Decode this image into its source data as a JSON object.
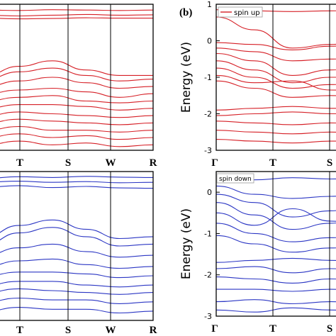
{
  "panel_label_b": "(b)",
  "colors": {
    "spin_up": "#d61f26",
    "spin_down": "#2b36c4",
    "frame": "#000000"
  },
  "chart_data": [
    {
      "id": "left-top",
      "type": "line",
      "description_hint": "band structure, spin up (cropped)",
      "title": "",
      "xlabel": "",
      "ylabel": "",
      "k_labels": [
        "T",
        "S",
        "W",
        "R"
      ],
      "ylim": [
        -3,
        1
      ],
      "spin": "up",
      "series": [
        {
          "x": [
            0,
            1,
            2,
            3,
            4,
            5,
            6
          ],
          "values": [
            0.85,
            0.84,
            0.83,
            0.85,
            0.84,
            0.83,
            0.84
          ]
        },
        {
          "x": [
            0,
            1,
            2,
            3,
            4,
            5,
            6
          ],
          "values": [
            0.72,
            0.7,
            0.68,
            0.7,
            0.72,
            0.7,
            0.71
          ]
        },
        {
          "x": [
            0,
            1,
            2,
            3,
            4,
            5,
            6
          ],
          "values": [
            0.62,
            0.62,
            0.6,
            0.61,
            0.63,
            0.62,
            0.62
          ]
        },
        {
          "x": [
            0,
            1,
            2,
            3,
            4,
            5,
            6
          ],
          "values": [
            -0.9,
            -0.95,
            -0.7,
            -0.55,
            -0.8,
            -0.95,
            -0.95
          ]
        },
        {
          "x": [
            0,
            1,
            2,
            3,
            4,
            5,
            6
          ],
          "values": [
            -1.0,
            -1.05,
            -0.85,
            -0.75,
            -0.95,
            -1.1,
            -1.05
          ]
        },
        {
          "x": [
            0,
            1,
            2,
            3,
            4,
            5,
            6
          ],
          "values": [
            -1.2,
            -1.25,
            -1.1,
            -1.0,
            -1.15,
            -1.3,
            -1.25
          ]
        },
        {
          "x": [
            0,
            1,
            2,
            3,
            4,
            5,
            6
          ],
          "values": [
            -1.4,
            -1.45,
            -1.35,
            -1.3,
            -1.4,
            -1.55,
            -1.45
          ]
        },
        {
          "x": [
            0,
            1,
            2,
            3,
            4,
            5,
            6
          ],
          "values": [
            -1.6,
            -1.65,
            -1.55,
            -1.5,
            -1.65,
            -1.7,
            -1.65
          ]
        },
        {
          "x": [
            0,
            1,
            2,
            3,
            4,
            5,
            6
          ],
          "values": [
            -1.8,
            -1.85,
            -1.75,
            -1.75,
            -1.8,
            -1.9,
            -1.85
          ]
        },
        {
          "x": [
            0,
            1,
            2,
            3,
            4,
            5,
            6
          ],
          "values": [
            -2.0,
            -2.05,
            -1.95,
            -2.0,
            -2.05,
            -2.1,
            -2.05
          ]
        },
        {
          "x": [
            0,
            1,
            2,
            3,
            4,
            5,
            6
          ],
          "values": [
            -2.2,
            -2.25,
            -2.15,
            -2.2,
            -2.25,
            -2.3,
            -2.25
          ]
        },
        {
          "x": [
            0,
            1,
            2,
            3,
            4,
            5,
            6
          ],
          "values": [
            -2.4,
            -2.45,
            -2.35,
            -2.45,
            -2.45,
            -2.5,
            -2.45
          ]
        },
        {
          "x": [
            0,
            1,
            2,
            3,
            4,
            5,
            6
          ],
          "values": [
            -2.6,
            -2.65,
            -2.55,
            -2.65,
            -2.6,
            -2.7,
            -2.65
          ]
        },
        {
          "x": [
            0,
            1,
            2,
            3,
            4,
            5,
            6
          ],
          "values": [
            -2.8,
            -2.85,
            -2.75,
            -2.85,
            -2.8,
            -2.9,
            -2.85
          ]
        }
      ]
    },
    {
      "id": "left-bottom",
      "type": "line",
      "description_hint": "band structure, spin down (cropped)",
      "title": "",
      "xlabel": "",
      "ylabel": "",
      "k_labels": [
        "T",
        "S",
        "W",
        "R"
      ],
      "ylim": [
        -3,
        1
      ],
      "spin": "down",
      "series": [
        {
          "x": [
            0,
            1,
            2,
            3,
            4,
            5,
            6
          ],
          "values": [
            0.85,
            0.82,
            0.86,
            0.84,
            0.87,
            0.85,
            0.84
          ]
        },
        {
          "x": [
            0,
            1,
            2,
            3,
            4,
            5,
            6
          ],
          "values": [
            0.7,
            0.72,
            0.74,
            0.71,
            0.73,
            0.7,
            0.71
          ]
        },
        {
          "x": [
            0,
            1,
            2,
            3,
            4,
            5,
            6
          ],
          "values": [
            0.55,
            0.58,
            0.62,
            0.57,
            0.6,
            0.56,
            0.55
          ]
        },
        {
          "x": [
            0,
            1,
            2,
            3,
            4,
            5,
            6
          ],
          "values": [
            -0.7,
            -0.75,
            -0.45,
            -0.3,
            -0.55,
            -0.8,
            -0.75
          ]
        },
        {
          "x": [
            0,
            1,
            2,
            3,
            4,
            5,
            6
          ],
          "values": [
            -0.9,
            -0.95,
            -0.65,
            -0.5,
            -0.75,
            -1.0,
            -0.95
          ]
        },
        {
          "x": [
            0,
            1,
            2,
            3,
            4,
            5,
            6
          ],
          "values": [
            -1.2,
            -1.25,
            -1.05,
            -0.95,
            -1.15,
            -1.3,
            -1.25
          ]
        },
        {
          "x": [
            0,
            1,
            2,
            3,
            4,
            5,
            6
          ],
          "values": [
            -1.5,
            -1.55,
            -1.4,
            -1.35,
            -1.5,
            -1.6,
            -1.55
          ]
        },
        {
          "x": [
            0,
            1,
            2,
            3,
            4,
            5,
            6
          ],
          "values": [
            -1.75,
            -1.8,
            -1.7,
            -1.7,
            -1.75,
            -1.85,
            -1.8
          ]
        },
        {
          "x": [
            0,
            1,
            2,
            3,
            4,
            5,
            6
          ],
          "values": [
            -2.0,
            -2.05,
            -1.95,
            -1.95,
            -2.05,
            -2.1,
            -2.05
          ]
        },
        {
          "x": [
            0,
            1,
            2,
            3,
            4,
            5,
            6
          ],
          "values": [
            -2.2,
            -2.25,
            -2.15,
            -2.2,
            -2.25,
            -2.3,
            -2.25
          ]
        },
        {
          "x": [
            0,
            1,
            2,
            3,
            4,
            5,
            6
          ],
          "values": [
            -2.45,
            -2.5,
            -2.4,
            -2.45,
            -2.45,
            -2.55,
            -2.5
          ]
        },
        {
          "x": [
            0,
            1,
            2,
            3,
            4,
            5,
            6
          ],
          "values": [
            -2.7,
            -2.75,
            -2.65,
            -2.7,
            -2.7,
            -2.8,
            -2.75
          ]
        }
      ]
    },
    {
      "id": "right-top",
      "type": "line",
      "title": "",
      "xlabel": "",
      "ylabel": "Energy (eV)",
      "k_labels": [
        "Γ",
        "T",
        "S"
      ],
      "yticks": [
        1,
        0,
        -1,
        -2,
        -3
      ],
      "ylim": [
        -3,
        1
      ],
      "legend": {
        "label": "spin up",
        "placement": "top-left"
      },
      "spin": "up",
      "series": [
        {
          "x": [
            0,
            1,
            2,
            3,
            4
          ],
          "values": [
            0.85,
            0.82,
            0.8,
            0.82,
            0.84
          ]
        },
        {
          "x": [
            0,
            1,
            2,
            3,
            4
          ],
          "values": [
            0.65,
            0.3,
            -0.2,
            -0.1,
            0.05
          ]
        },
        {
          "x": [
            0,
            1,
            2,
            3,
            4
          ],
          "values": [
            -0.05,
            -0.1,
            -0.25,
            -0.15,
            -0.1
          ]
        },
        {
          "x": [
            0,
            1,
            2,
            3,
            4
          ],
          "values": [
            -0.2,
            -0.3,
            -0.55,
            -0.5,
            -0.45
          ]
        },
        {
          "x": [
            0,
            1,
            2,
            3,
            4
          ],
          "values": [
            -0.35,
            -0.55,
            -0.95,
            -0.8,
            -0.7
          ]
        },
        {
          "x": [
            0,
            1,
            2,
            3,
            4
          ],
          "values": [
            -0.55,
            -0.8,
            -1.15,
            -1.0,
            -0.95
          ]
        },
        {
          "x": [
            0,
            1,
            2,
            3,
            4
          ],
          "values": [
            -0.75,
            -1.0,
            -1.3,
            -1.2,
            -1.15
          ]
        },
        {
          "x": [
            0,
            1,
            2,
            3,
            4
          ],
          "values": [
            -0.95,
            -1.15,
            -1.1,
            -1.35,
            -1.4
          ]
        },
        {
          "x": [
            0,
            1,
            2,
            3,
            4
          ],
          "values": [
            -1.1,
            -1.3,
            -1.55,
            -1.5,
            -1.55
          ]
        },
        {
          "x": [
            0,
            1,
            2,
            3,
            4
          ],
          "values": [
            -1.9,
            -1.85,
            -1.8,
            -1.85,
            -1.85
          ]
        },
        {
          "x": [
            0,
            1,
            2,
            3,
            4
          ],
          "values": [
            -2.05,
            -2.0,
            -1.95,
            -2.0,
            -2.0
          ]
        },
        {
          "x": [
            0,
            1,
            2,
            3,
            4
          ],
          "values": [
            -2.2,
            -2.25,
            -2.3,
            -2.25,
            -2.3
          ]
        },
        {
          "x": [
            0,
            1,
            2,
            3,
            4
          ],
          "values": [
            -2.45,
            -2.5,
            -2.55,
            -2.5,
            -2.55
          ]
        },
        {
          "x": [
            0,
            1,
            2,
            3,
            4
          ],
          "values": [
            -2.7,
            -2.75,
            -2.8,
            -2.75,
            -2.75
          ]
        }
      ]
    },
    {
      "id": "right-bottom",
      "type": "line",
      "title": "",
      "xlabel": "",
      "ylabel": "Energy (eV)",
      "k_labels": [
        "Γ",
        "T",
        "S"
      ],
      "yticks": [
        0,
        -1,
        -2,
        -3
      ],
      "ylim": [
        -3,
        0.5
      ],
      "legend": {
        "label": "spin down",
        "placement": "top-left"
      },
      "spin": "down",
      "series": [
        {
          "x": [
            0,
            1,
            2,
            3,
            4
          ],
          "values": [
            0.4,
            0.3,
            0.35,
            0.32,
            0.35
          ]
        },
        {
          "x": [
            0,
            1,
            2,
            3,
            4
          ],
          "values": [
            0.15,
            -0.05,
            -0.15,
            -0.1,
            0.0
          ]
        },
        {
          "x": [
            0,
            1,
            2,
            3,
            4
          ],
          "values": [
            -0.05,
            -0.25,
            -0.6,
            -0.45,
            -0.3
          ]
        },
        {
          "x": [
            0,
            1,
            2,
            3,
            4
          ],
          "values": [
            -0.25,
            -0.55,
            -0.9,
            -0.75,
            -0.6
          ]
        },
        {
          "x": [
            0,
            1,
            2,
            3,
            4
          ],
          "values": [
            -0.5,
            -0.8,
            -0.4,
            -0.7,
            -0.85
          ]
        },
        {
          "x": [
            0,
            1,
            2,
            3,
            4
          ],
          "values": [
            -0.75,
            -1.0,
            -1.2,
            -1.1,
            -1.05
          ]
        },
        {
          "x": [
            0,
            1,
            2,
            3,
            4
          ],
          "values": [
            -1.05,
            -1.25,
            -1.45,
            -1.35,
            -1.3
          ]
        },
        {
          "x": [
            0,
            1,
            2,
            3,
            4
          ],
          "values": [
            -1.7,
            -1.65,
            -1.6,
            -1.65,
            -1.7
          ]
        },
        {
          "x": [
            0,
            1,
            2,
            3,
            4
          ],
          "values": [
            -1.85,
            -1.8,
            -1.95,
            -1.85,
            -1.9
          ]
        },
        {
          "x": [
            0,
            1,
            2,
            3,
            4
          ],
          "values": [
            -2.05,
            -2.1,
            -2.2,
            -2.1,
            -2.15
          ]
        },
        {
          "x": [
            0,
            1,
            2,
            3,
            4
          ],
          "values": [
            -2.35,
            -2.35,
            -2.4,
            -2.35,
            -2.4
          ]
        },
        {
          "x": [
            0,
            1,
            2,
            3,
            4
          ],
          "values": [
            -2.65,
            -2.6,
            -2.7,
            -2.65,
            -2.7
          ]
        },
        {
          "x": [
            0,
            1,
            2,
            3,
            4
          ],
          "values": [
            -2.85,
            -2.9,
            -2.8,
            -2.85,
            -2.9
          ]
        }
      ]
    }
  ]
}
